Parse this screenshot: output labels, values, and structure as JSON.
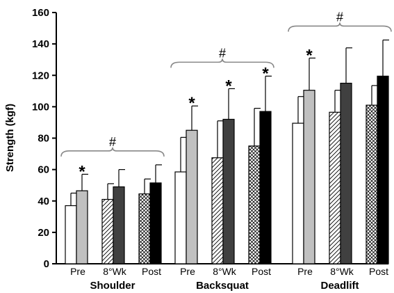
{
  "chart_data": {
    "type": "bar",
    "title": "",
    "ylabel": "Strength (kgf)",
    "ylim": [
      0,
      160
    ],
    "yticks": [
      0,
      20,
      40,
      60,
      80,
      100,
      120,
      140,
      160
    ],
    "groups": [
      {
        "name": "Shoulder",
        "significance": "#",
        "phases": [
          {
            "label": "Pre",
            "bars": [
              {
                "value": 37,
                "error": 8
              },
              {
                "value": 46.5,
                "error": 10.5,
                "mark": "*"
              }
            ]
          },
          {
            "label": "8°Wk",
            "bars": [
              {
                "value": 41,
                "error": 10
              },
              {
                "value": 49,
                "error": 11
              }
            ]
          },
          {
            "label": "Post",
            "bars": [
              {
                "value": 44.5,
                "error": 9.5
              },
              {
                "value": 51.5,
                "error": 11.5
              }
            ]
          }
        ]
      },
      {
        "name": "Backsquat",
        "significance": "#",
        "phases": [
          {
            "label": "Pre",
            "bars": [
              {
                "value": 58.5,
                "error": 22
              },
              {
                "value": 85,
                "error": 15.5,
                "mark": "*"
              }
            ]
          },
          {
            "label": "8°Wk",
            "bars": [
              {
                "value": 67.5,
                "error": 23.5
              },
              {
                "value": 92,
                "error": 19.5,
                "mark": "*"
              }
            ]
          },
          {
            "label": "Post",
            "bars": [
              {
                "value": 75,
                "error": 24
              },
              {
                "value": 97,
                "error": 22.5,
                "mark": "*"
              }
            ]
          }
        ]
      },
      {
        "name": "Deadlift",
        "significance": "#",
        "phases": [
          {
            "label": "Pre",
            "bars": [
              {
                "value": 89.5,
                "error": 17
              },
              {
                "value": 110.5,
                "error": 20.5,
                "mark": "*"
              }
            ]
          },
          {
            "label": "8°Wk",
            "bars": [
              {
                "value": 96.5,
                "error": 14
              },
              {
                "value": 115,
                "error": 22.5
              }
            ]
          },
          {
            "label": "Post",
            "bars": [
              {
                "value": 101,
                "error": 12.5
              },
              {
                "value": 119.5,
                "error": 23
              }
            ]
          }
        ]
      }
    ],
    "bar_styles": [
      [
        "white",
        "#c0c0c0"
      ],
      [
        "hatch",
        "#404040"
      ],
      [
        "crosshatch",
        "#000000"
      ]
    ]
  }
}
